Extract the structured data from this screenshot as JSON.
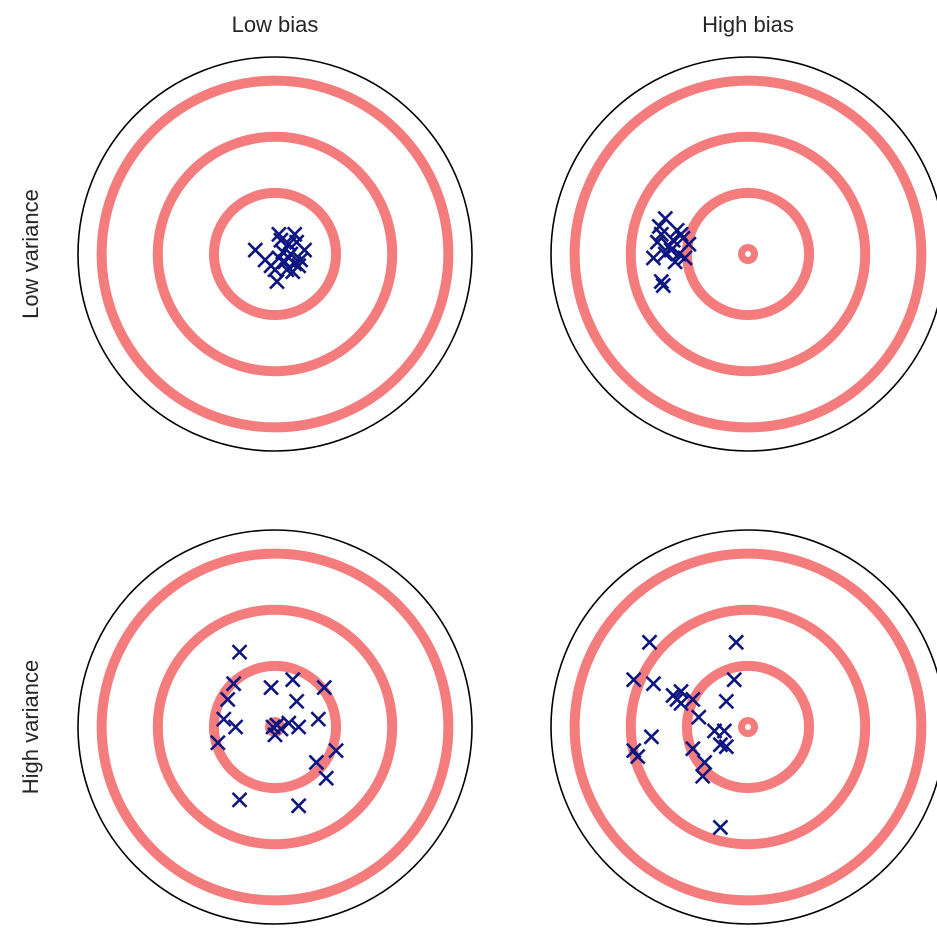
{
  "column_titles": [
    "Low bias",
    "High bias"
  ],
  "row_titles": [
    "Low variance",
    "High variance"
  ],
  "colors": {
    "ring": "#f47c7c",
    "marker": "#0d1580",
    "outer_circle": "#000000"
  },
  "marker_icon": "x-mark",
  "panels": [
    {
      "bias": "Low bias",
      "variance": "Low variance",
      "bullseye_visible": false,
      "hits": [
        [
          0.1,
          0.1
        ],
        [
          0.02,
          0.1
        ],
        [
          -0.1,
          0.02
        ],
        [
          0.02,
          -0.02
        ],
        [
          0.05,
          -0.04
        ],
        [
          0.08,
          0.0
        ],
        [
          0.12,
          -0.06
        ],
        [
          0.0,
          -0.08
        ],
        [
          0.15,
          0.02
        ],
        [
          0.1,
          -0.05
        ],
        [
          -0.05,
          -0.03
        ],
        [
          0.03,
          0.07
        ],
        [
          0.07,
          0.05
        ],
        [
          0.13,
          -0.03
        ],
        [
          0.01,
          -0.14
        ],
        [
          0.06,
          -0.08
        ],
        [
          0.04,
          0.01
        ],
        [
          -0.02,
          -0.06
        ],
        [
          0.09,
          -0.09
        ],
        [
          0.11,
          0.06
        ]
      ]
    },
    {
      "bias": "High bias",
      "variance": "Low variance",
      "bullseye_visible": true,
      "hits": [
        [
          -0.42,
          0.18
        ],
        [
          -0.44,
          0.1
        ],
        [
          -0.38,
          0.07
        ],
        [
          -0.36,
          0.12
        ],
        [
          -0.4,
          0.04
        ],
        [
          -0.46,
          0.06
        ],
        [
          -0.33,
          0.08
        ],
        [
          -0.3,
          0.05
        ],
        [
          -0.35,
          0.0
        ],
        [
          -0.42,
          0.0
        ],
        [
          -0.48,
          -0.02
        ],
        [
          -0.37,
          -0.04
        ],
        [
          -0.32,
          -0.02
        ],
        [
          -0.44,
          -0.14
        ],
        [
          -0.43,
          -0.16
        ],
        [
          -0.45,
          0.14
        ],
        [
          -0.39,
          0.02
        ],
        [
          -0.34,
          0.1
        ]
      ]
    },
    {
      "bias": "Low bias",
      "variance": "High variance",
      "bullseye_visible": true,
      "hits": [
        [
          -0.18,
          0.38
        ],
        [
          -0.24,
          0.14
        ],
        [
          -0.21,
          0.22
        ],
        [
          -0.26,
          0.04
        ],
        [
          -0.2,
          0.0
        ],
        [
          -0.29,
          -0.08
        ],
        [
          -0.02,
          0.2
        ],
        [
          0.09,
          0.24
        ],
        [
          0.11,
          0.13
        ],
        [
          0.07,
          0.02
        ],
        [
          -0.01,
          0.0
        ],
        [
          0.0,
          -0.04
        ],
        [
          0.01,
          0.01
        ],
        [
          0.12,
          0.0
        ],
        [
          0.25,
          0.2
        ],
        [
          0.22,
          0.04
        ],
        [
          0.21,
          -0.18
        ],
        [
          0.31,
          -0.12
        ],
        [
          0.26,
          -0.26
        ],
        [
          0.12,
          -0.4
        ],
        [
          -0.18,
          -0.37
        ],
        [
          0.03,
          -0.01
        ]
      ]
    },
    {
      "bias": "High bias",
      "variance": "High variance",
      "bullseye_visible": true,
      "hits": [
        [
          -0.5,
          0.43
        ],
        [
          -0.06,
          0.43
        ],
        [
          -0.58,
          0.24
        ],
        [
          -0.48,
          0.22
        ],
        [
          -0.38,
          0.16
        ],
        [
          -0.36,
          0.14
        ],
        [
          -0.34,
          0.18
        ],
        [
          -0.28,
          0.14
        ],
        [
          -0.34,
          0.12
        ],
        [
          -0.07,
          0.24
        ],
        [
          -0.11,
          0.13
        ],
        [
          -0.25,
          0.05
        ],
        [
          -0.49,
          -0.05
        ],
        [
          -0.58,
          -0.12
        ],
        [
          -0.56,
          -0.15
        ],
        [
          -0.28,
          -0.11
        ],
        [
          -0.14,
          -0.09
        ],
        [
          -0.17,
          -0.02
        ],
        [
          -0.12,
          -0.02
        ],
        [
          -0.11,
          -0.1
        ],
        [
          -0.22,
          -0.18
        ],
        [
          -0.23,
          -0.25
        ],
        [
          -0.14,
          -0.51
        ]
      ]
    }
  ]
}
